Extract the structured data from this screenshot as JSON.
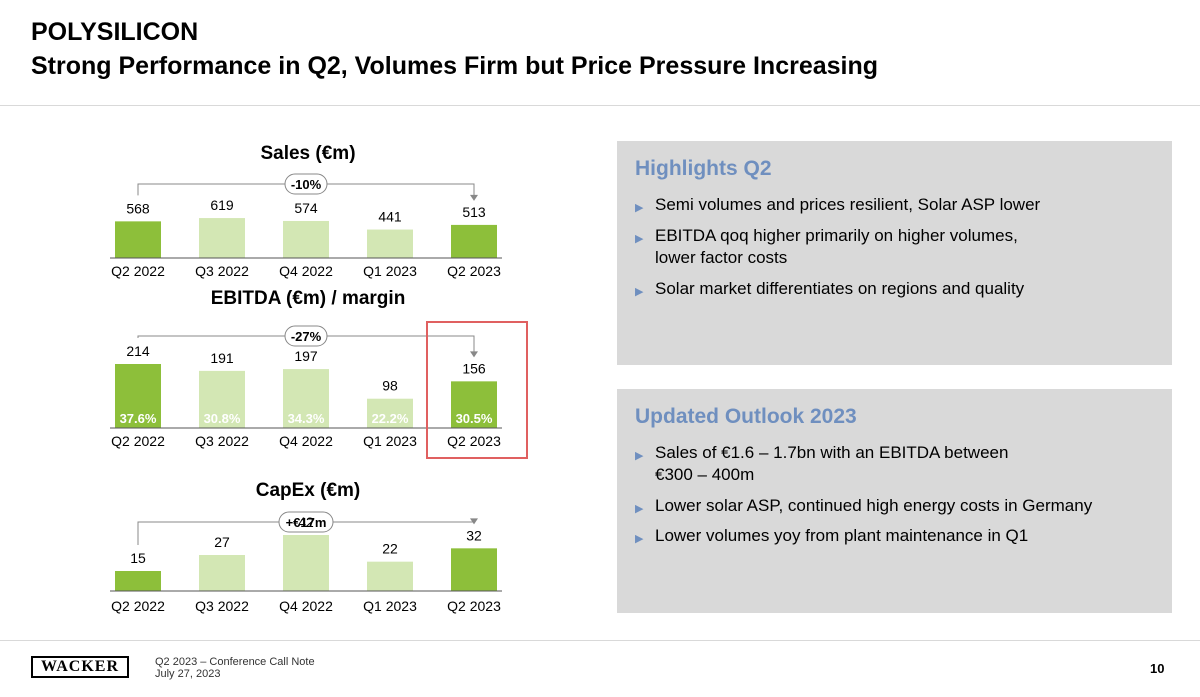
{
  "header": {
    "title": "POLYSILICON",
    "subtitle": "Strong Performance in Q2, Volumes Firm but Price Pressure Increasing"
  },
  "colors": {
    "dark_green": "#8dbf3a",
    "light_green": "#d3e7b4",
    "highlight_red": "#e06060",
    "box_heading": "#6f8fbf",
    "box_bg": "#d9d9d9"
  },
  "chart_data": [
    {
      "type": "bar",
      "title": "Sales (€m)",
      "categories": [
        "Q2 2022",
        "Q3 2022",
        "Q4 2022",
        "Q1 2023",
        "Q2 2023"
      ],
      "values": [
        568,
        619,
        574,
        441,
        513
      ],
      "highlighted": [
        true,
        false,
        false,
        false,
        true
      ],
      "change_label": "-10%"
    },
    {
      "type": "bar",
      "title": "EBITDA (€m) / margin",
      "categories": [
        "Q2 2022",
        "Q3 2022",
        "Q4 2022",
        "Q1 2023",
        "Q2 2023"
      ],
      "values": [
        214,
        191,
        197,
        98,
        156
      ],
      "margins": [
        "37.6%",
        "30.8%",
        "34.3%",
        "22.2%",
        "30.5%"
      ],
      "highlighted": [
        true,
        false,
        false,
        false,
        true
      ],
      "change_label": "-27%"
    },
    {
      "type": "bar",
      "title": "CapEx (€m)",
      "categories": [
        "Q2 2022",
        "Q3 2022",
        "Q4 2022",
        "Q1 2023",
        "Q2 2023"
      ],
      "values": [
        15,
        27,
        42,
        22,
        32
      ],
      "highlighted": [
        true,
        false,
        false,
        false,
        true
      ],
      "change_label": "+€17m"
    }
  ],
  "highlights": {
    "heading": "Highlights Q2",
    "items": [
      {
        "line1": "Semi volumes and prices resilient, Solar ASP lower",
        "line2": ""
      },
      {
        "line1": "EBITDA qoq higher primarily on higher volumes,",
        "line2": "lower factor costs"
      },
      {
        "line1": "Solar market differentiates on regions and quality",
        "line2": ""
      }
    ]
  },
  "outlook": {
    "heading": "Updated Outlook 2023",
    "items": [
      {
        "line1": "Sales of €1.6 – 1.7bn with an EBITDA between",
        "line2": "€300 – 400m"
      },
      {
        "line1": "Lower solar ASP, continued high energy costs in Germany",
        "line2": ""
      },
      {
        "line1": "Lower volumes yoy from plant maintenance in Q1",
        "line2": ""
      }
    ]
  },
  "footer": {
    "logo": "WACKER",
    "line1": "Q2 2023 – Conference Call Note",
    "line2": "July 27, 2023",
    "page": "10"
  }
}
